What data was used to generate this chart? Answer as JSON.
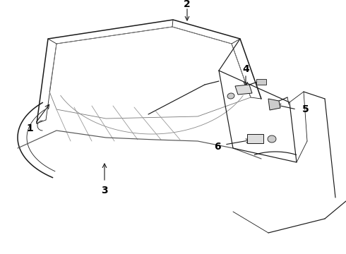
{
  "bg_color": "#ffffff",
  "line_color": "#1a1a1a",
  "label_color": "#000000",
  "lw_main": 1.1,
  "lw_thin": 0.6,
  "lw_med": 0.85,
  "label_fontsize": 10,
  "figsize": [
    4.9,
    3.6
  ],
  "dpi": 100
}
